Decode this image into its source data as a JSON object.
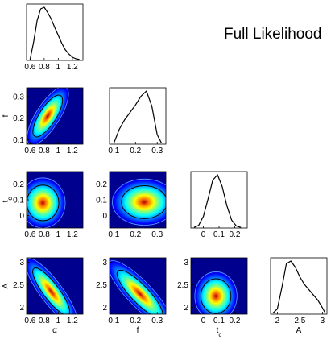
{
  "title": "Full Likelihood",
  "chart_data": {
    "type": "corner",
    "title": "Full Likelihood",
    "parameters": [
      {
        "name": "α",
        "ticks": [
          "0.6",
          "0.8",
          "1",
          "1.2"
        ],
        "tick_values": [
          0.6,
          0.8,
          1.0,
          1.2
        ],
        "range": [
          0.55,
          1.35
        ]
      },
      {
        "name": "f",
        "ticks": [
          "0.1",
          "0.2",
          "0.3"
        ],
        "tick_values": [
          0.1,
          0.2,
          0.3
        ],
        "range": [
          0.08,
          0.34
        ]
      },
      {
        "name": "t",
        "subscript": "c",
        "ticks": [
          "0",
          "0.1",
          "0.2"
        ],
        "tick_values": [
          0.0,
          0.1,
          0.2
        ],
        "range": [
          -0.08,
          0.28
        ]
      },
      {
        "name": "A",
        "ticks": [
          "2",
          "2.5",
          "3"
        ],
        "tick_values": [
          2.0,
          2.5,
          3.0
        ],
        "range": [
          1.85,
          3.1
        ]
      }
    ],
    "marginals": [
      {
        "parameter": "α",
        "x": [
          0.6,
          0.65,
          0.7,
          0.75,
          0.8,
          0.85,
          0.9,
          0.95,
          1.0,
          1.05,
          1.1,
          1.15,
          1.2,
          1.25,
          1.3
        ],
        "density": [
          0.02,
          0.35,
          0.75,
          0.97,
          1.0,
          0.9,
          0.78,
          0.62,
          0.47,
          0.32,
          0.2,
          0.12,
          0.06,
          0.03,
          0.02
        ]
      },
      {
        "parameter": "f",
        "x": [
          0.1,
          0.125,
          0.15,
          0.175,
          0.2,
          0.225,
          0.25,
          0.275,
          0.3,
          0.32
        ],
        "density": [
          0.02,
          0.28,
          0.46,
          0.6,
          0.74,
          0.9,
          1.0,
          0.72,
          0.18,
          0.02
        ]
      },
      {
        "parameter": "t_c",
        "x": [
          -0.06,
          -0.03,
          0.0,
          0.03,
          0.06,
          0.09,
          0.12,
          0.15,
          0.18,
          0.21,
          0.24
        ],
        "density": [
          0.01,
          0.05,
          0.22,
          0.55,
          0.9,
          1.0,
          0.78,
          0.42,
          0.15,
          0.04,
          0.01
        ]
      },
      {
        "parameter": "A",
        "x": [
          1.9,
          2.0,
          2.1,
          2.2,
          2.3,
          2.4,
          2.5,
          2.6,
          2.7,
          2.8,
          2.9,
          3.0,
          3.05
        ],
        "density": [
          0.02,
          0.1,
          0.5,
          0.95,
          1.0,
          0.88,
          0.7,
          0.56,
          0.46,
          0.36,
          0.26,
          0.12,
          0.04
        ]
      }
    ],
    "joints": [
      {
        "x": "α",
        "y": "f",
        "mean": [
          0.85,
          0.21
        ],
        "sd": [
          0.12,
          0.055
        ],
        "rho": 0.75
      },
      {
        "x": "α",
        "y": "t_c",
        "mean": [
          0.78,
          0.08
        ],
        "sd": [
          0.13,
          0.065
        ],
        "rho": 0.0
      },
      {
        "x": "f",
        "y": "t_c",
        "mean": [
          0.24,
          0.085
        ],
        "sd": [
          0.06,
          0.06
        ],
        "rho": 0.0
      },
      {
        "x": "α",
        "y": "A",
        "mean": [
          0.9,
          2.35
        ],
        "sd": [
          0.15,
          0.3
        ],
        "rho": -0.85
      },
      {
        "x": "f",
        "y": "A",
        "mean": [
          0.22,
          2.3
        ],
        "sd": [
          0.06,
          0.3
        ],
        "rho": -0.85
      },
      {
        "x": "t_c",
        "y": "A",
        "mean": [
          0.08,
          2.25
        ],
        "sd": [
          0.055,
          0.22
        ],
        "rho": 0.0
      }
    ]
  }
}
